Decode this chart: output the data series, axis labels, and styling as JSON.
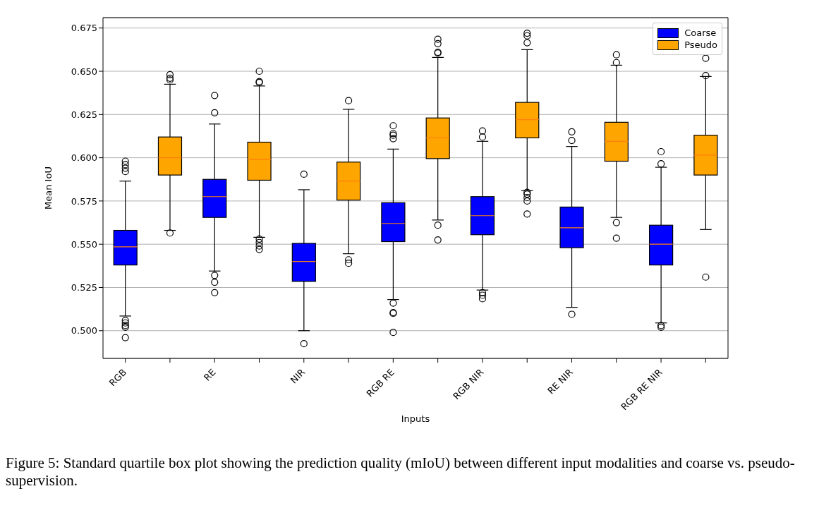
{
  "chart_data": {
    "type": "box",
    "xlabel": "Inputs",
    "ylabel": "Mean IoU",
    "categories": [
      "RGB",
      null,
      "RE",
      null,
      "NIR",
      null,
      "RGB RE",
      null,
      "RGB NIR",
      null,
      "RE NIR",
      null,
      "RGB RE NIR",
      null
    ],
    "series": [
      {
        "name": "Coarse",
        "color": "#0000ff",
        "boxes": [
          {
            "low": 0.5085,
            "q1": 0.538,
            "median": 0.5485,
            "q3": 0.558,
            "high": 0.5865,
            "outliers": [
              0.598,
              0.596,
              0.594,
              0.592,
              0.506,
              0.5045,
              0.503,
              0.502,
              0.496
            ]
          },
          null,
          {
            "low": 0.5345,
            "q1": 0.5655,
            "median": 0.5775,
            "q3": 0.5875,
            "high": 0.6195,
            "outliers": [
              0.636,
              0.626,
              0.532,
              0.528,
              0.522
            ]
          },
          null,
          {
            "low": 0.5,
            "q1": 0.5285,
            "median": 0.54,
            "q3": 0.5505,
            "high": 0.5815,
            "outliers": [
              0.5905,
              0.4925
            ]
          },
          null,
          {
            "low": 0.518,
            "q1": 0.5515,
            "median": 0.562,
            "q3": 0.574,
            "high": 0.605,
            "outliers": [
              0.6185,
              0.614,
              0.613,
              0.611,
              0.516,
              0.5105,
              0.51,
              0.499
            ]
          },
          null,
          {
            "low": 0.5235,
            "q1": 0.5555,
            "median": 0.5665,
            "q3": 0.5775,
            "high": 0.6095,
            "outliers": [
              0.6155,
              0.612,
              0.522,
              0.5205,
              0.5185
            ]
          },
          null,
          {
            "low": 0.5135,
            "q1": 0.548,
            "median": 0.5595,
            "q3": 0.5715,
            "high": 0.6065,
            "outliers": [
              0.615,
              0.61,
              0.5095
            ]
          },
          null,
          {
            "low": 0.5045,
            "q1": 0.538,
            "median": 0.55,
            "q3": 0.561,
            "high": 0.5945,
            "outliers": [
              0.6035,
              0.5965,
              0.503,
              0.502
            ]
          },
          null
        ]
      },
      {
        "name": "Pseudo",
        "color": "#ffa500",
        "boxes": [
          null,
          {
            "low": 0.558,
            "q1": 0.59,
            "median": 0.6,
            "q3": 0.612,
            "high": 0.6425,
            "outliers": [
              0.648,
              0.646,
              0.645,
              0.5565
            ]
          },
          null,
          {
            "low": 0.554,
            "q1": 0.587,
            "median": 0.599,
            "q3": 0.609,
            "high": 0.6415,
            "outliers": [
              0.65,
              0.644,
              0.6435,
              0.553,
              0.551,
              0.549,
              0.547
            ]
          },
          null,
          {
            "low": 0.5445,
            "q1": 0.5755,
            "median": 0.5865,
            "q3": 0.5975,
            "high": 0.628,
            "outliers": [
              0.633,
              0.541,
              0.539
            ]
          },
          null,
          {
            "low": 0.564,
            "q1": 0.5995,
            "median": 0.6115,
            "q3": 0.623,
            "high": 0.658,
            "outliers": [
              0.6685,
              0.666,
              0.661,
              0.6605,
              0.561,
              0.5525
            ]
          },
          null,
          {
            "low": 0.581,
            "q1": 0.6115,
            "median": 0.622,
            "q3": 0.632,
            "high": 0.6625,
            "outliers": [
              0.672,
              0.6705,
              0.6665,
              0.58,
              0.579,
              0.577,
              0.575,
              0.5675
            ]
          },
          null,
          {
            "low": 0.5655,
            "q1": 0.598,
            "median": 0.6095,
            "q3": 0.6205,
            "high": 0.6535,
            "outliers": [
              0.6595,
              0.655,
              0.5625,
              0.5535
            ]
          },
          null,
          {
            "low": 0.5585,
            "q1": 0.59,
            "median": 0.6015,
            "q3": 0.613,
            "high": 0.647,
            "outliers": [
              0.6575,
              0.6475,
              0.531
            ]
          }
        ]
      }
    ],
    "ylim": [
      0.484,
      0.681
    ],
    "yticks": [
      {
        "value": 0.5,
        "label": "0.500"
      },
      0.525,
      {
        "value": 0.55,
        "label": "0.550"
      },
      0.575,
      {
        "value": 0.6,
        "label": "0.600"
      },
      0.625,
      {
        "value": 0.65,
        "label": "0.650"
      },
      0.675
    ],
    "grid": "y",
    "legend": "top right",
    "annotations": [
      "Figure 5: Standard quartile box plot showing the prediction quality (mIoU) between different input modalities and coarse vs. pseudo-supervision."
    ]
  }
}
